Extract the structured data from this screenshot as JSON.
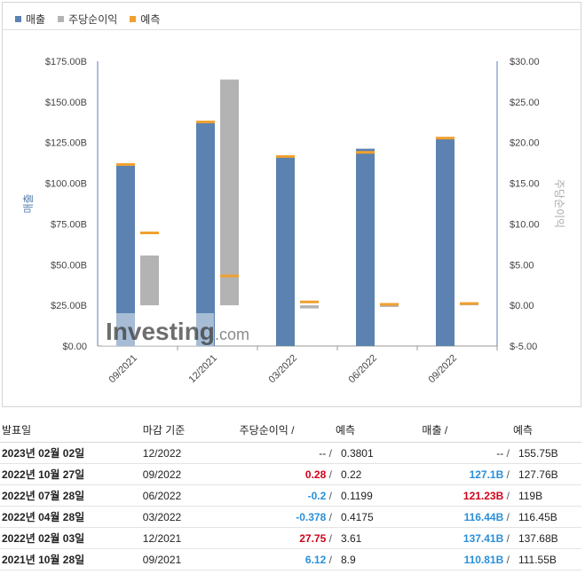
{
  "legend": [
    {
      "label": "매출",
      "color": "#5b82b0"
    },
    {
      "label": "주당순이익",
      "color": "#b3b3b3"
    },
    {
      "label": "예측",
      "color": "#f0a030"
    }
  ],
  "chart_data": {
    "type": "bar",
    "categories": [
      "09/2021",
      "12/2021",
      "03/2022",
      "06/2022",
      "09/2022"
    ],
    "series": [
      {
        "name": "매출",
        "axis": "left",
        "unit": "B",
        "values": [
          110.81,
          137.41,
          116.44,
          121.23,
          127.1
        ]
      },
      {
        "name": "매출 예측",
        "axis": "left",
        "unit": "B",
        "values": [
          111.55,
          137.68,
          116.45,
          119,
          127.76
        ]
      },
      {
        "name": "주당순이익",
        "axis": "right",
        "values": [
          6.12,
          27.75,
          -0.378,
          -0.2,
          0.28
        ]
      },
      {
        "name": "주당순이익 예측",
        "axis": "right",
        "values": [
          8.9,
          3.61,
          0.4175,
          0.1199,
          0.22
        ]
      }
    ],
    "left_axis": {
      "label": "매출",
      "ticks": [
        "$0.00",
        "$25.00B",
        "$50.00B",
        "$75.00B",
        "$100.00B",
        "$125.00B",
        "$150.00B",
        "$175.00B"
      ],
      "ylim": [
        0,
        175
      ]
    },
    "right_axis": {
      "label": "주당순이익",
      "ticks": [
        "$-5.00",
        "$0.00",
        "$5.00",
        "$10.00",
        "$15.00",
        "$20.00",
        "$25.00",
        "$30.00"
      ],
      "ylim": [
        -5,
        30
      ]
    },
    "grid": false
  },
  "watermark": {
    "brand": "Investing",
    "suffix": ".com"
  },
  "table": {
    "headers": {
      "date": "발표일",
      "period": "마감 기준",
      "eps": "주당순이익 /",
      "eps_forecast": "예측",
      "revenue": "매출 /",
      "revenue_forecast": "예측"
    },
    "rows": [
      {
        "date": "2023년 02월 02일",
        "period": "12/2022",
        "eps": "--",
        "eps_class": "na",
        "eps_forecast": "0.3801",
        "revenue": "--",
        "revenue_class": "na",
        "revenue_forecast": "155.75B"
      },
      {
        "date": "2022년 10월 27일",
        "period": "09/2022",
        "eps": "0.28",
        "eps_class": "neg",
        "eps_forecast": "0.22",
        "revenue": "127.1B",
        "revenue_class": "pos",
        "revenue_forecast": "127.76B"
      },
      {
        "date": "2022년 07월 28일",
        "period": "06/2022",
        "eps": "-0.2",
        "eps_class": "pos",
        "eps_forecast": "0.1199",
        "revenue": "121.23B",
        "revenue_class": "neg",
        "revenue_forecast": "119B"
      },
      {
        "date": "2022년 04월 28일",
        "period": "03/2022",
        "eps": "-0.378",
        "eps_class": "pos",
        "eps_forecast": "0.4175",
        "revenue": "116.44B",
        "revenue_class": "pos",
        "revenue_forecast": "116.45B"
      },
      {
        "date": "2022년 02월 03일",
        "period": "12/2021",
        "eps": "27.75",
        "eps_class": "neg",
        "eps_forecast": "3.61",
        "revenue": "137.41B",
        "revenue_class": "pos",
        "revenue_forecast": "137.68B"
      },
      {
        "date": "2021년 10월 28일",
        "period": "09/2021",
        "eps": "6.12",
        "eps_class": "pos",
        "eps_forecast": "8.9",
        "revenue": "110.81B",
        "revenue_class": "pos",
        "revenue_forecast": "111.55B"
      }
    ]
  }
}
